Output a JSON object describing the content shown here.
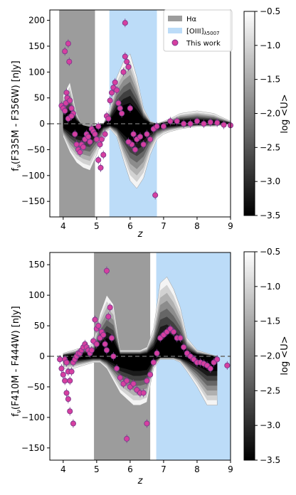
{
  "colorbar": {
    "label": "log <U>",
    "range": [
      -3.5,
      -0.5
    ],
    "ticks": [
      "-0.5",
      "-1.0",
      "-1.5",
      "-2.0",
      "-2.5",
      "-3.0",
      "-3.5"
    ]
  },
  "legend": {
    "halpha": "Hα",
    "oiii_main": "[OIII]",
    "oiii_sub": "λ5007",
    "points": "This work"
  },
  "colors": {
    "halpha_band": "#9c9c9c",
    "oiii_band": "#bcdcf8",
    "points_fill": "#d63fa0",
    "points_edge": "#7b3a8c",
    "zero_line": "#666666"
  },
  "chart_data": [
    {
      "type": "scatter",
      "title": "",
      "xlabel": "z",
      "ylabel_main": "f",
      "ylabel_sub": "ν",
      "ylabel_rest": "(F335M - F356W) [nJy]",
      "xlim": [
        3.6,
        9.0
      ],
      "ylim": [
        -180,
        220
      ],
      "xticks": [
        4,
        5,
        6,
        7,
        8,
        9
      ],
      "yticks": [
        -150,
        -100,
        -50,
        0,
        50,
        100,
        150,
        200
      ],
      "zero_line": true,
      "bands": [
        {
          "name": "Hα",
          "x0": 3.88,
          "x1": 4.95
        },
        {
          "name": "[OIII]λ5007",
          "x0": 5.38,
          "x1": 6.8
        }
      ],
      "envelope": {
        "x": [
          4.0,
          4.2,
          4.4,
          4.6,
          4.8,
          5.0,
          5.2,
          5.4,
          5.6,
          5.8,
          6.0,
          6.2,
          6.4,
          6.6,
          6.8,
          7.0,
          7.2,
          7.5,
          8.0,
          8.5,
          9.0
        ],
        "upper": [
          55,
          80,
          20,
          -10,
          -20,
          -10,
          0,
          30,
          90,
          120,
          135,
          90,
          30,
          5,
          0,
          5,
          10,
          20,
          25,
          20,
          5
        ],
        "lower": [
          -25,
          -55,
          -75,
          -85,
          -90,
          -60,
          -20,
          -10,
          -25,
          -70,
          -110,
          -125,
          -105,
          -60,
          -30,
          -20,
          -15,
          -10,
          -5,
          -5,
          0
        ]
      },
      "points": {
        "x": [
          3.95,
          4.0,
          4.05,
          4.08,
          4.1,
          4.12,
          4.15,
          4.18,
          4.2,
          4.25,
          4.3,
          4.35,
          4.4,
          4.45,
          4.5,
          4.55,
          4.6,
          4.65,
          4.7,
          4.75,
          4.8,
          4.85,
          4.9,
          4.95,
          5.0,
          5.05,
          5.1,
          5.15,
          5.2,
          5.25,
          5.3,
          5.35,
          5.4,
          5.45,
          5.5,
          5.55,
          5.6,
          5.65,
          5.7,
          5.75,
          5.8,
          5.85,
          5.9,
          5.95,
          6.0,
          6.05,
          6.1,
          6.15,
          6.2,
          6.3,
          6.4,
          6.5,
          6.6,
          6.7,
          6.8,
          7.0,
          7.2,
          7.4,
          7.6,
          7.8,
          8.0,
          8.2,
          8.4,
          8.6,
          8.8,
          9.0,
          4.05,
          4.15,
          5.12,
          5.85,
          6.75,
          5.05,
          4.25,
          5.95
        ],
        "y": [
          35,
          30,
          25,
          40,
          60,
          50,
          155,
          120,
          45,
          30,
          20,
          -20,
          -40,
          -50,
          -55,
          -40,
          -45,
          -30,
          -20,
          -25,
          -35,
          -10,
          -15,
          -20,
          -30,
          -5,
          -40,
          -30,
          -60,
          -20,
          15,
          10,
          45,
          60,
          70,
          80,
          65,
          40,
          30,
          20,
          100,
          130,
          120,
          110,
          30,
          -40,
          -20,
          -50,
          -30,
          -25,
          -40,
          -20,
          -30,
          -10,
          -5,
          -5,
          5,
          5,
          0,
          0,
          5,
          0,
          3,
          2,
          -2,
          -3,
          140,
          10,
          -85,
          195,
          -138,
          -70,
          15,
          -35
        ]
      }
    },
    {
      "type": "scatter",
      "title": "",
      "xlabel": "z",
      "ylabel_main": "f",
      "ylabel_sub": "ν",
      "ylabel_rest": "(F410M - F444W) [nJy]",
      "xlim": [
        3.6,
        9.0
      ],
      "ylim": [
        -170,
        170
      ],
      "xticks": [
        4,
        5,
        6,
        7,
        8,
        9
      ],
      "yticks": [
        -150,
        -100,
        -50,
        0,
        50,
        100,
        150
      ],
      "zero_line": true,
      "bands": [
        {
          "name": "Hα",
          "x0": 4.92,
          "x1": 6.6
        },
        {
          "name": "[OIII]λ5007",
          "x0": 6.78,
          "x1": 9.0
        }
      ],
      "envelope": {
        "x": [
          4.0,
          4.3,
          4.6,
          4.9,
          5.1,
          5.3,
          5.5,
          5.7,
          5.9,
          6.1,
          6.3,
          6.5,
          6.7,
          6.9,
          7.1,
          7.3,
          7.5,
          7.7,
          8.0,
          8.3,
          8.6
        ],
        "upper": [
          5,
          10,
          15,
          20,
          70,
          100,
          85,
          10,
          10,
          10,
          10,
          15,
          45,
          120,
          130,
          110,
          80,
          30,
          10,
          5,
          0
        ],
        "lower": [
          -20,
          -20,
          -15,
          -10,
          -10,
          -20,
          -40,
          -60,
          -70,
          -80,
          -80,
          -75,
          -20,
          -5,
          -5,
          -5,
          -10,
          -25,
          -50,
          -80,
          -80
        ]
      },
      "points": {
        "x": [
          3.9,
          3.95,
          4.0,
          4.05,
          4.1,
          4.15,
          4.2,
          4.25,
          4.3,
          4.35,
          4.4,
          4.45,
          4.5,
          4.55,
          4.6,
          4.65,
          4.7,
          4.75,
          4.8,
          4.85,
          4.9,
          4.95,
          5.0,
          5.05,
          5.1,
          5.15,
          5.2,
          5.25,
          5.3,
          5.35,
          5.4,
          5.45,
          5.5,
          5.6,
          5.7,
          5.8,
          5.9,
          6.0,
          6.1,
          6.2,
          6.3,
          6.4,
          6.5,
          6.6,
          6.7,
          6.8,
          6.9,
          7.0,
          7.1,
          7.2,
          7.3,
          7.4,
          7.5,
          7.6,
          7.7,
          7.8,
          7.9,
          8.0,
          8.1,
          8.2,
          8.3,
          8.4,
          8.5,
          8.6,
          8.9,
          4.1,
          4.2,
          4.3,
          5.3,
          5.0,
          4.05,
          4.15,
          5.9,
          6.5
        ],
        "y": [
          -5,
          -20,
          -30,
          -5,
          -10,
          -25,
          -40,
          -25,
          -10,
          -5,
          0,
          5,
          5,
          10,
          15,
          20,
          15,
          10,
          5,
          10,
          25,
          60,
          45,
          50,
          30,
          40,
          35,
          20,
          140,
          65,
          80,
          30,
          0,
          -20,
          -35,
          -45,
          -40,
          -50,
          -45,
          -55,
          -60,
          -60,
          -40,
          -30,
          -10,
          5,
          30,
          35,
          40,
          45,
          40,
          30,
          30,
          15,
          5,
          0,
          -5,
          -10,
          -10,
          -12,
          -15,
          -20,
          -10,
          -5,
          -15,
          -60,
          -90,
          -110,
          10,
          20,
          -40,
          -70,
          -135,
          -110
        ]
      }
    }
  ]
}
